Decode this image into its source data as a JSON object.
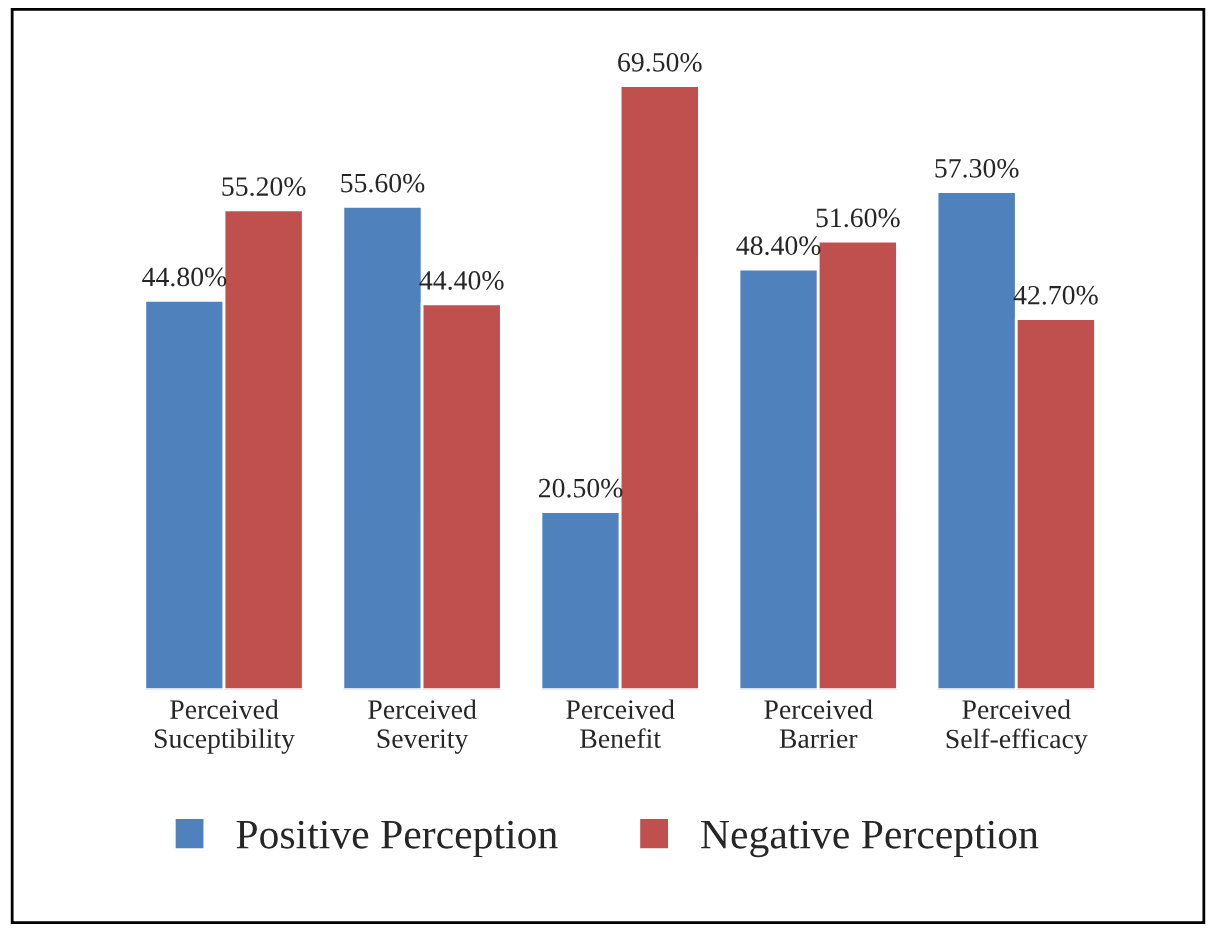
{
  "chart_data": {
    "type": "bar",
    "categories": [
      "Perceived\nSuceptibility",
      "Perceived\nSeverity",
      "Perceived\nBenefit",
      "Perceived\nBarrier",
      "Perceived\nSelf-efficacy"
    ],
    "series": [
      {
        "name": "Positive Perception",
        "color": "#4f81bd",
        "values": [
          44.8,
          55.6,
          20.5,
          48.4,
          57.3
        ],
        "value_labels": [
          "44.80%",
          "55.60%",
          "20.50%",
          "48.40%",
          "57.30%"
        ]
      },
      {
        "name": "Negative Perception",
        "color": "#c0504d",
        "values": [
          55.2,
          44.4,
          69.5,
          51.6,
          42.7
        ],
        "value_labels": [
          "55.20%",
          "44.40%",
          "69.50%",
          "51.60%",
          "42.70%"
        ]
      }
    ],
    "legend": "bottom",
    "grid": false,
    "tick_labels": "x"
  }
}
